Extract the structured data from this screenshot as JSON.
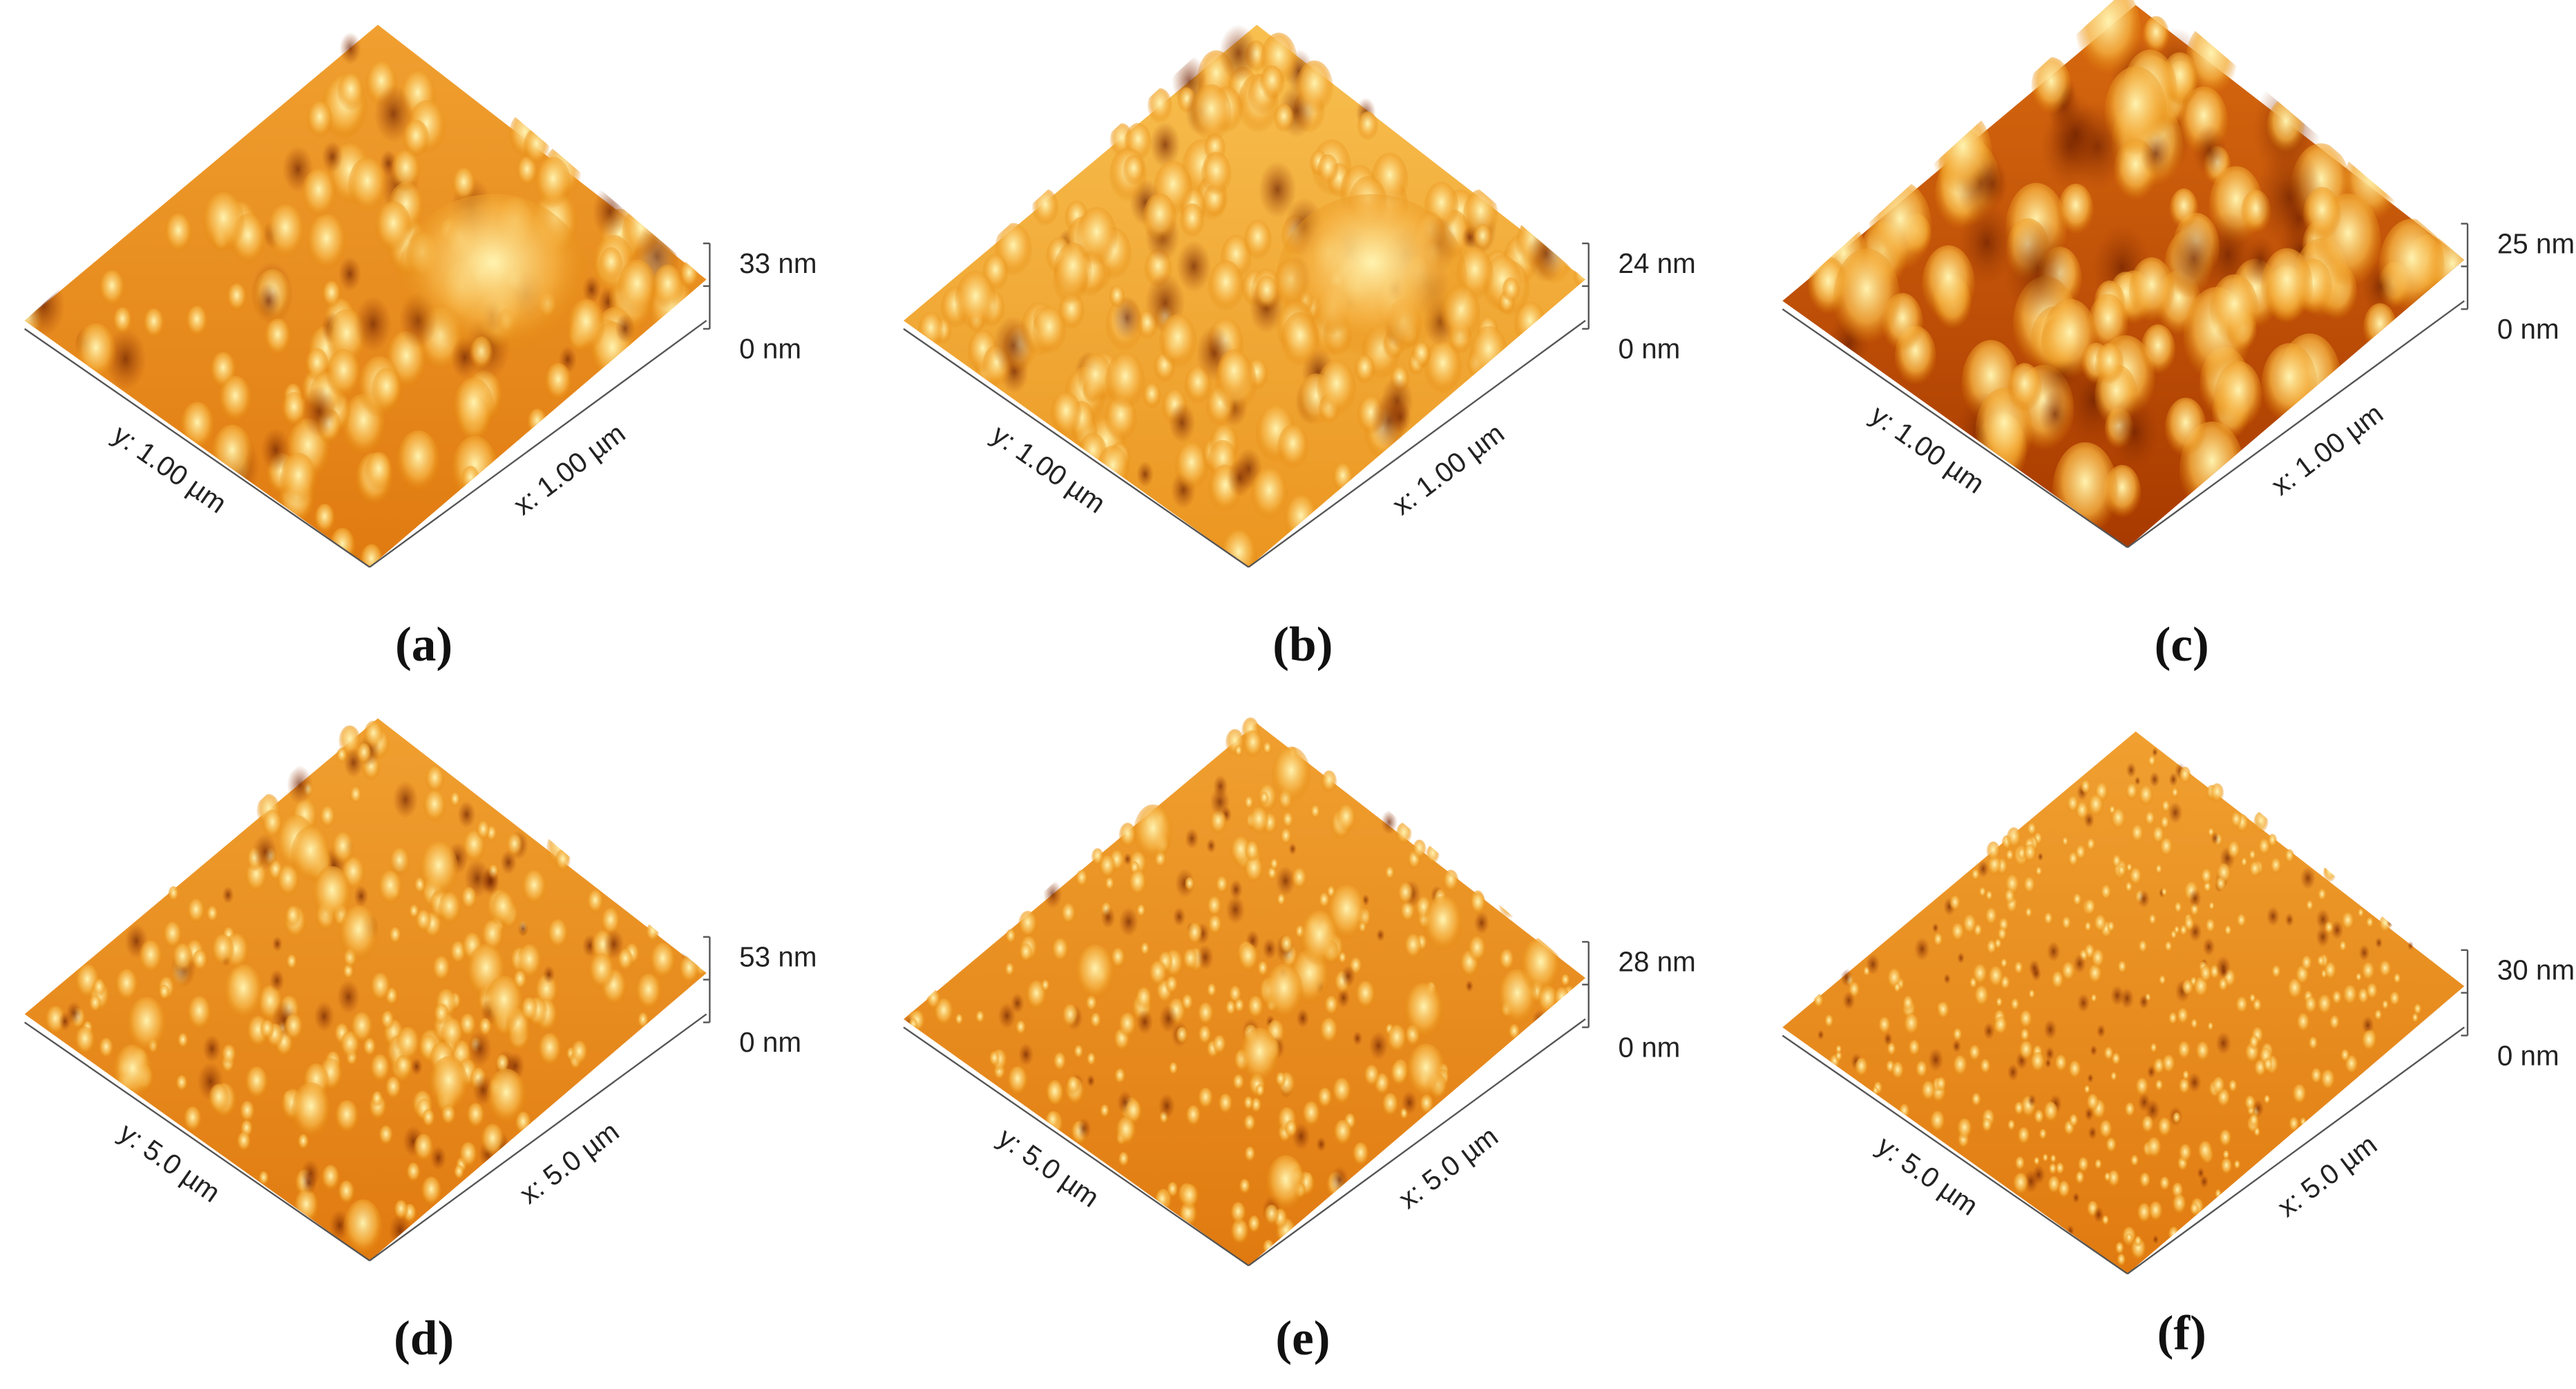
{
  "panels": [
    {
      "caption": "(a)",
      "z_max": "33 nm",
      "z_min": "0 nm",
      "y_axis": "y: 1.00 µm",
      "x_axis": "x: 1.00 µm"
    },
    {
      "caption": "(b)",
      "z_max": "24 nm",
      "z_min": "0 nm",
      "y_axis": "y: 1.00 µm",
      "x_axis": "x: 1.00 µm"
    },
    {
      "caption": "(c)",
      "z_max": "25 nm",
      "z_min": "0 nm",
      "y_axis": "y: 1.00 µm",
      "x_axis": "x: 1.00 µm"
    },
    {
      "caption": "(d)",
      "z_max": "53 nm",
      "z_min": "0 nm",
      "y_axis": "y: 5.0 µm",
      "x_axis": "x: 5.0 µm"
    },
    {
      "caption": "(e)",
      "z_max": "28 nm",
      "z_min": "0 nm",
      "y_axis": "y: 5.0 µm",
      "x_axis": "x: 5.0 µm"
    },
    {
      "caption": "(f)",
      "z_max": "30 nm",
      "z_min": "0 nm",
      "y_axis": "y: 5.0 µm",
      "x_axis": "x: 5.0 µm"
    }
  ]
}
